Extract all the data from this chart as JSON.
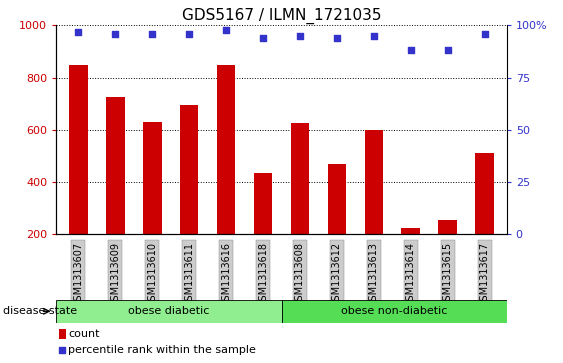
{
  "title": "GDS5167 / ILMN_1721035",
  "samples": [
    "GSM1313607",
    "GSM1313609",
    "GSM1313610",
    "GSM1313611",
    "GSM1313616",
    "GSM1313618",
    "GSM1313608",
    "GSM1313612",
    "GSM1313613",
    "GSM1313614",
    "GSM1313615",
    "GSM1313617"
  ],
  "counts": [
    850,
    725,
    630,
    695,
    850,
    435,
    625,
    470,
    600,
    225,
    255,
    510
  ],
  "percentiles": [
    97,
    96,
    96,
    96,
    98,
    94,
    95,
    94,
    95,
    88,
    88,
    96
  ],
  "ylim_left": [
    200,
    1000
  ],
  "ylim_right": [
    0,
    100
  ],
  "yticks_left": [
    200,
    400,
    600,
    800,
    1000
  ],
  "yticks_right": [
    0,
    25,
    50,
    75,
    100
  ],
  "bar_color": "#cc0000",
  "dot_color": "#3333cc",
  "groups": [
    {
      "label": "obese diabetic",
      "n_samples": 6,
      "color": "#90ee90"
    },
    {
      "label": "obese non-diabetic",
      "n_samples": 6,
      "color": "#55dd55"
    }
  ],
  "group_label": "disease state",
  "legend_count_label": "count",
  "legend_percentile_label": "percentile rank within the sample",
  "tick_bg_color": "#cccccc",
  "title_fontsize": 11,
  "bar_width": 0.5
}
